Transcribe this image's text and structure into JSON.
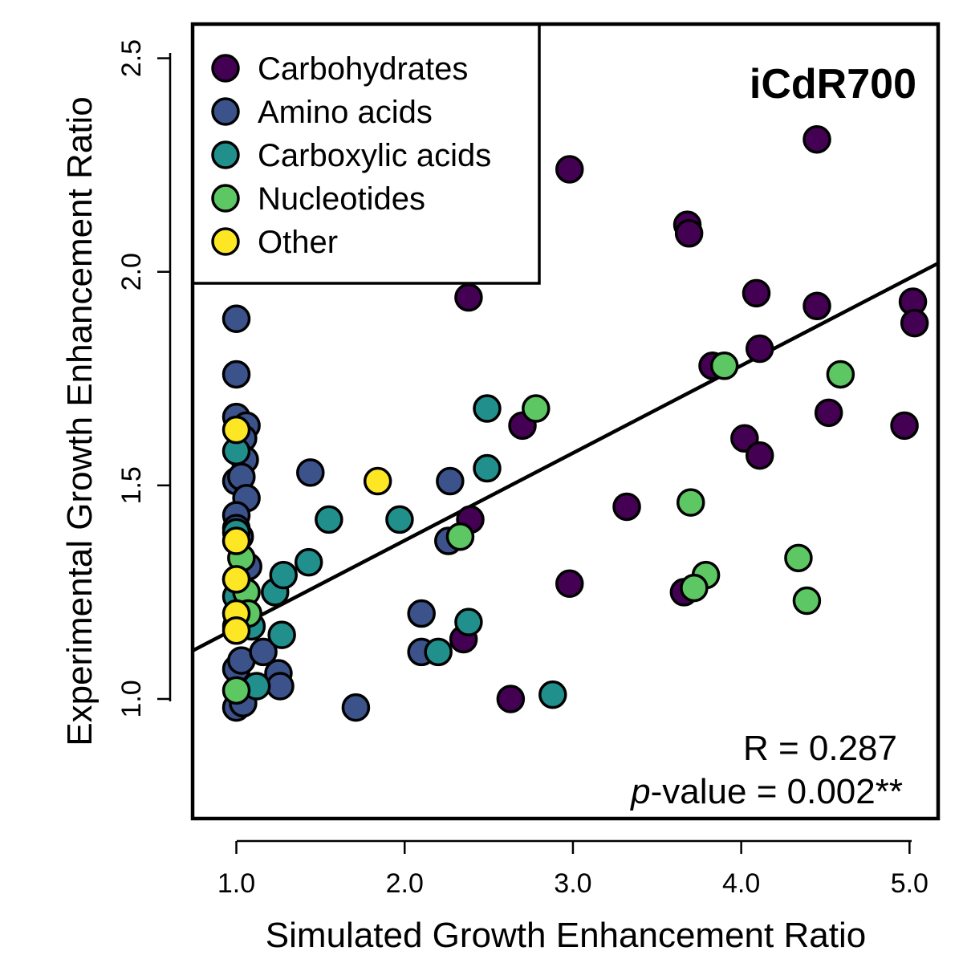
{
  "chart_data": {
    "type": "scatter",
    "title": "iCdR700",
    "xlabel": "Simulated Growth Enhancement Ratio",
    "ylabel": "Experimental Growth Enhancement Ratio",
    "xlim": [
      0.74,
      5.17
    ],
    "ylim": [
      0.72,
      2.58
    ],
    "x_ticks": [
      "1.0",
      "2.0",
      "3.0",
      "4.0",
      "5.0"
    ],
    "x_tick_values": [
      1,
      2,
      3,
      4,
      5
    ],
    "y_ticks": [
      "1.0",
      "1.5",
      "2.0",
      "2.5"
    ],
    "y_tick_values": [
      1.0,
      1.5,
      2.0,
      2.5
    ],
    "legend_position": "top-left",
    "grid": false,
    "regression_line": {
      "x": [
        0.74,
        5.17
      ],
      "y": [
        1.113,
        2.02
      ]
    },
    "stats": {
      "r_text": "R = 0.287",
      "p_italic": "p",
      "p_rest": "-value = 0.002**"
    },
    "series": [
      {
        "name": "Carbohydrates",
        "color": "#440154",
        "points": [
          [
            4.45,
            2.31
          ],
          [
            2.98,
            2.24
          ],
          [
            3.68,
            2.11
          ],
          [
            3.69,
            2.09
          ],
          [
            2.38,
            1.94
          ],
          [
            4.09,
            1.95
          ],
          [
            4.45,
            1.92
          ],
          [
            5.02,
            1.93
          ],
          [
            5.03,
            1.88
          ],
          [
            3.83,
            1.78
          ],
          [
            4.11,
            1.82
          ],
          [
            4.52,
            1.67
          ],
          [
            4.97,
            1.64
          ],
          [
            2.7,
            1.64
          ],
          [
            4.02,
            1.61
          ],
          [
            4.11,
            1.57
          ],
          [
            3.32,
            1.45
          ],
          [
            2.39,
            1.42
          ],
          [
            2.98,
            1.27
          ],
          [
            3.66,
            1.25
          ],
          [
            2.35,
            1.14
          ],
          [
            2.63,
            1.0
          ]
        ]
      },
      {
        "name": "Amino acids",
        "color": "#3b528b",
        "points": [
          [
            1.0,
            1.89
          ],
          [
            1.0,
            1.76
          ],
          [
            1.0,
            1.66
          ],
          [
            1.06,
            1.64
          ],
          [
            1.04,
            1.61
          ],
          [
            1.05,
            1.56
          ],
          [
            1.0,
            1.51
          ],
          [
            1.03,
            1.52
          ],
          [
            1.06,
            1.47
          ],
          [
            1.0,
            1.43
          ],
          [
            1.0,
            1.4
          ],
          [
            1.02,
            1.38
          ],
          [
            1.07,
            1.31
          ],
          [
            1.0,
            1.28
          ],
          [
            1.0,
            1.17
          ],
          [
            1.0,
            1.07
          ],
          [
            1.03,
            1.09
          ],
          [
            1.16,
            1.11
          ],
          [
            1.25,
            1.06
          ],
          [
            1.26,
            1.03
          ],
          [
            1.0,
            0.98
          ],
          [
            1.04,
            0.99
          ],
          [
            1.44,
            1.53
          ],
          [
            2.27,
            1.51
          ],
          [
            2.26,
            1.37
          ],
          [
            2.1,
            1.2
          ],
          [
            2.1,
            1.11
          ],
          [
            1.71,
            0.98
          ]
        ]
      },
      {
        "name": "Carboxylic acids",
        "color": "#21908d",
        "points": [
          [
            1.0,
            1.58
          ],
          [
            1.0,
            1.39
          ],
          [
            1.0,
            1.24
          ],
          [
            1.09,
            1.17
          ],
          [
            1.23,
            1.25
          ],
          [
            1.28,
            1.29
          ],
          [
            1.43,
            1.32
          ],
          [
            1.27,
            1.15
          ],
          [
            1.12,
            1.03
          ],
          [
            1.55,
            1.42
          ],
          [
            1.97,
            1.42
          ],
          [
            2.49,
            1.68
          ],
          [
            2.49,
            1.54
          ],
          [
            2.38,
            1.18
          ],
          [
            2.2,
            1.11
          ],
          [
            2.88,
            1.01
          ]
        ]
      },
      {
        "name": "Nucleotides",
        "color": "#5dc863",
        "points": [
          [
            1.03,
            1.33
          ],
          [
            1.06,
            1.25
          ],
          [
            1.07,
            1.2
          ],
          [
            1.0,
            1.02
          ],
          [
            2.33,
            1.38
          ],
          [
            2.78,
            1.68
          ],
          [
            3.7,
            1.46
          ],
          [
            3.79,
            1.29
          ],
          [
            3.72,
            1.26
          ],
          [
            3.9,
            1.78
          ],
          [
            4.59,
            1.76
          ],
          [
            4.34,
            1.33
          ],
          [
            4.39,
            1.23
          ]
        ]
      },
      {
        "name": "Other",
        "color": "#fde725",
        "points": [
          [
            1.0,
            1.63
          ],
          [
            1.0,
            1.37
          ],
          [
            1.0,
            1.28
          ],
          [
            1.0,
            1.2
          ],
          [
            1.0,
            1.16
          ],
          [
            1.84,
            1.51
          ]
        ]
      }
    ]
  }
}
